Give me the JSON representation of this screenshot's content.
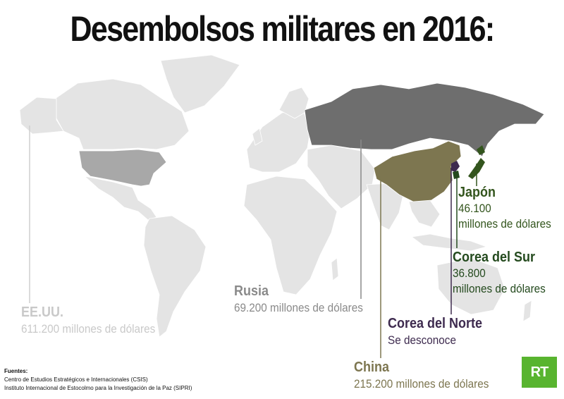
{
  "title": "Desembolsos militares en 2016:",
  "colors": {
    "background_land": "#e6e6e6",
    "usa": "#a8a8a8",
    "russia": "#6e6e6e",
    "china": "#7d7650",
    "north_korea": "#3e2b4f",
    "south_korea": "#244a1e",
    "japan": "#33551d",
    "logo": "#58b42f"
  },
  "countries": {
    "usa": {
      "name": "EE.UU.",
      "value": "611.200 millones de dólares"
    },
    "russia": {
      "name": "Rusia",
      "value": "69.200 millones de dólares"
    },
    "china": {
      "name": "China",
      "value": "215.200 millones de dólares"
    },
    "north_korea": {
      "name": "Corea del Norte",
      "value": "Se desconoce"
    },
    "south_korea": {
      "name": "Corea del Sur",
      "value_line1": "36.800",
      "value_line2": "millones de dólares"
    },
    "japan": {
      "name": "Japón",
      "value_line1": "46.100",
      "value_line2": "millones de dólares"
    }
  },
  "sources": {
    "heading": "Fuentes:",
    "line1": "Centro de Estudios Estratégicos e Internacionales (CSIS)",
    "line2": "Instituto Internacional de Estocolmo para la Investigación de la Paz (SIPRI)"
  },
  "logo_text": "RT"
}
